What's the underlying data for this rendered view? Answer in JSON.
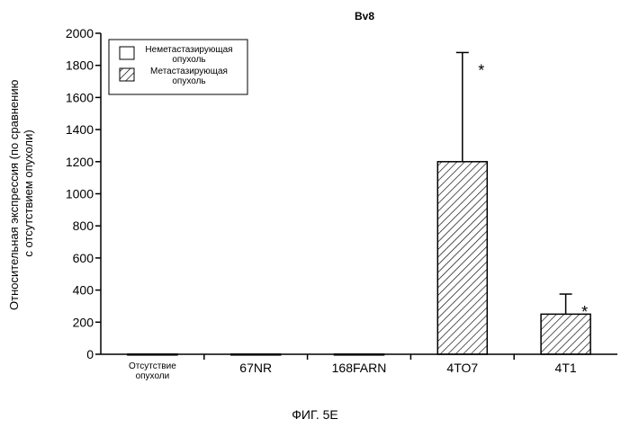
{
  "chart_data": {
    "type": "bar",
    "title": "Bv8",
    "ylabel": "Относительная экспрессия (по сравнению с отсутствием опухоли)",
    "ylabel_lines": [
      "Относительная экспрессия (по сравнению",
      "с отсутствием опухоли)"
    ],
    "xlabel": "",
    "ylim": [
      0,
      2000
    ],
    "yticks": [
      0,
      200,
      400,
      600,
      800,
      1000,
      1200,
      1400,
      1600,
      1800,
      2000
    ],
    "categories": [
      {
        "label_lines": [
          "Отсутствие",
          "опухоли"
        ],
        "small": true
      },
      {
        "label_lines": [
          "67NR"
        ],
        "small": false
      },
      {
        "label_lines": [
          "168FARN"
        ],
        "small": false
      },
      {
        "label_lines": [
          "4TO7"
        ],
        "small": false
      },
      {
        "label_lines": [
          "4T1"
        ],
        "small": false
      }
    ],
    "values": [
      1,
      1,
      1,
      1200,
      250
    ],
    "error_upper": [
      null,
      null,
      null,
      1880,
      375
    ],
    "significance": [
      "",
      "",
      "",
      "*",
      "*"
    ],
    "bar_style": [
      "empty",
      "empty",
      "empty",
      "hatched",
      "hatched"
    ],
    "legend": {
      "placement": "top-left",
      "entries": [
        {
          "label_lines": [
            "Неметастазирующая",
            "опухоль"
          ],
          "style": "empty"
        },
        {
          "label_lines": [
            "Метастазирующая",
            "опухоль"
          ],
          "style": "hatched"
        }
      ]
    },
    "grid": false
  },
  "caption": "ФИГ. 5E"
}
